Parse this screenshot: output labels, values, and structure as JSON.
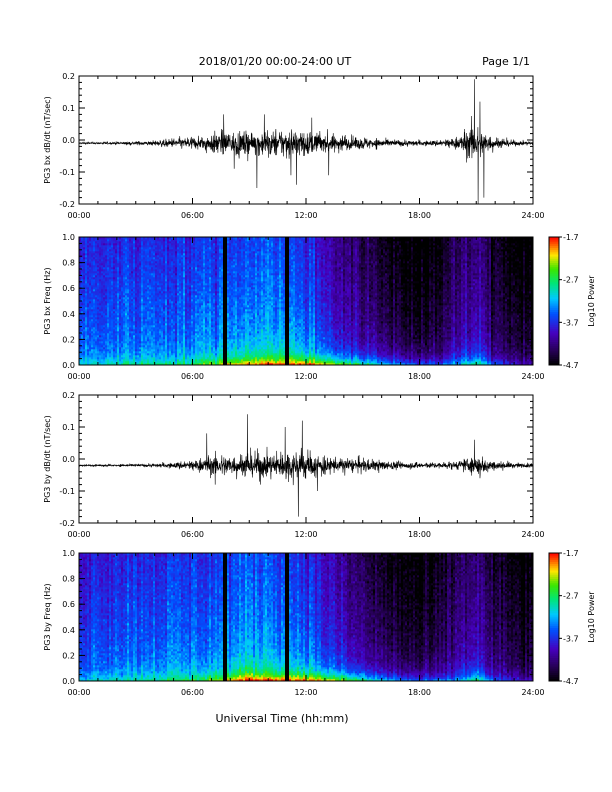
{
  "header": {
    "title": "2018/01/20  00:00-24:00 UT",
    "page": "Page 1/1"
  },
  "footer": {
    "xlabel": "Universal Time (hh:mm)"
  },
  "colors": {
    "trace": "#000000",
    "background": "#ffffff"
  },
  "chart_data": [
    {
      "type": "line",
      "id": "bx-dbdt",
      "title": "",
      "ylabel": "PG3 bx dB/dt (nT/sec)",
      "xlabel": "",
      "xlim": [
        0,
        24
      ],
      "ylim": [
        -0.2,
        0.2
      ],
      "x_ticks": [
        "00:00",
        "06:00",
        "12:00",
        "18:00",
        "24:00"
      ],
      "y_ticks": [
        "-0.2",
        "-0.1",
        "0.0",
        "0.1",
        "0.2"
      ],
      "grid": false,
      "baseline": -0.01,
      "envelope": {
        "hours": [
          0,
          2,
          4,
          5,
          6,
          7,
          8,
          9,
          10,
          11,
          12,
          13,
          14,
          15,
          16,
          17,
          18,
          19,
          20,
          20.8,
          21.2,
          22,
          23,
          24
        ],
        "amplitude": [
          0.004,
          0.006,
          0.012,
          0.022,
          0.03,
          0.045,
          0.06,
          0.055,
          0.06,
          0.07,
          0.06,
          0.045,
          0.035,
          0.03,
          0.02,
          0.014,
          0.012,
          0.014,
          0.03,
          0.09,
          0.07,
          0.03,
          0.012,
          0.008
        ]
      },
      "spikes": [
        {
          "hour": 7.65,
          "value": 0.08
        },
        {
          "hour": 8.2,
          "value": -0.09
        },
        {
          "hour": 9.4,
          "value": -0.15
        },
        {
          "hour": 9.8,
          "value": 0.08
        },
        {
          "hour": 11.2,
          "value": -0.11
        },
        {
          "hour": 11.5,
          "value": -0.14
        },
        {
          "hour": 12.3,
          "value": 0.07
        },
        {
          "hour": 13.2,
          "value": -0.11
        },
        {
          "hour": 20.9,
          "value": 0.19
        },
        {
          "hour": 21.1,
          "value": -0.21
        },
        {
          "hour": 21.4,
          "value": -0.18
        },
        {
          "hour": 21.2,
          "value": 0.12
        }
      ]
    },
    {
      "type": "heatmap",
      "id": "bx-freq",
      "title": "",
      "ylabel": "PG3 bx Freq (Hz)",
      "xlabel": "",
      "xlim": [
        0,
        24
      ],
      "ylim": [
        0,
        1.0
      ],
      "x_ticks": [
        "00:00",
        "06:00",
        "12:00",
        "18:00",
        "24:00"
      ],
      "y_ticks": [
        "0.0",
        "0.2",
        "0.4",
        "0.6",
        "0.8",
        "1.0"
      ],
      "colorbar": {
        "label": "Log10 Power",
        "range": [
          -4.7,
          -1.7
        ],
        "ticks": [
          "-1.7",
          "-2.7",
          "-3.7",
          "-4.7"
        ]
      },
      "gaps_hours": [
        7.75,
        11.0
      ],
      "activity_hours": [
        0,
        3,
        6,
        8,
        10,
        12,
        14,
        16,
        18,
        19,
        20,
        21,
        22,
        24
      ],
      "activity_log_power": [
        -3.5,
        -3.4,
        -3.4,
        -3.3,
        -3.2,
        -3.4,
        -3.9,
        -4.3,
        -4.5,
        -4.4,
        -4.1,
        -3.9,
        -4.3,
        -4.5
      ],
      "low_freq_boost_hours": [
        0,
        6,
        8,
        10,
        12,
        14,
        16,
        18,
        20,
        21,
        22,
        24
      ],
      "low_freq_boost": [
        0.4,
        0.6,
        1.0,
        1.2,
        1.3,
        1.2,
        1.0,
        0.8,
        0.7,
        1.0,
        0.6,
        0.4
      ]
    },
    {
      "type": "line",
      "id": "by-dbdt",
      "title": "",
      "ylabel": "PG3 by dB/dt (nT/sec)",
      "xlabel": "",
      "xlim": [
        0,
        24
      ],
      "ylim": [
        -0.2,
        0.2
      ],
      "x_ticks": [
        "00:00",
        "06:00",
        "12:00",
        "18:00",
        "24:00"
      ],
      "y_ticks": [
        "-0.2",
        "-0.1",
        "0.0",
        "0.1",
        "0.2"
      ],
      "grid": false,
      "baseline": -0.02,
      "envelope": {
        "hours": [
          0,
          2,
          4,
          5,
          6,
          7,
          8,
          9,
          10,
          11,
          11.7,
          12,
          13,
          14,
          15,
          16,
          17,
          18,
          19,
          20,
          21,
          21.5,
          22,
          23,
          24
        ],
        "amplitude": [
          0.004,
          0.005,
          0.008,
          0.014,
          0.025,
          0.045,
          0.05,
          0.06,
          0.055,
          0.065,
          0.085,
          0.06,
          0.045,
          0.035,
          0.03,
          0.025,
          0.018,
          0.014,
          0.014,
          0.02,
          0.05,
          0.035,
          0.02,
          0.012,
          0.01
        ]
      },
      "spikes": [
        {
          "hour": 6.75,
          "value": 0.08
        },
        {
          "hour": 7.2,
          "value": -0.08
        },
        {
          "hour": 8.9,
          "value": 0.14
        },
        {
          "hour": 9.6,
          "value": -0.08
        },
        {
          "hour": 10.9,
          "value": 0.1
        },
        {
          "hour": 11.6,
          "value": -0.18
        },
        {
          "hour": 11.8,
          "value": 0.12
        },
        {
          "hour": 12.6,
          "value": -0.1
        },
        {
          "hour": 20.9,
          "value": 0.06
        },
        {
          "hour": 21.2,
          "value": -0.06
        }
      ]
    },
    {
      "type": "heatmap",
      "id": "by-freq",
      "title": "",
      "ylabel": "PG3 by Freq (Hz)",
      "xlabel": "",
      "xlim": [
        0,
        24
      ],
      "ylim": [
        0,
        1.0
      ],
      "x_ticks": [
        "00:00",
        "06:00",
        "12:00",
        "18:00",
        "24:00"
      ],
      "y_ticks": [
        "0.0",
        "0.2",
        "0.4",
        "0.6",
        "0.8",
        "1.0"
      ],
      "colorbar": {
        "label": "Log10 Power",
        "range": [
          -4.7,
          -1.7
        ],
        "ticks": [
          "-1.7",
          "-2.7",
          "-3.7",
          "-4.7"
        ]
      },
      "gaps_hours": [
        7.75,
        11.0
      ],
      "activity_hours": [
        0,
        3,
        6,
        8,
        10,
        12,
        14,
        16,
        18,
        19,
        20,
        21,
        22,
        24
      ],
      "activity_log_power": [
        -3.5,
        -3.4,
        -3.4,
        -3.3,
        -3.2,
        -3.4,
        -3.9,
        -4.3,
        -4.5,
        -4.4,
        -4.1,
        -3.9,
        -4.3,
        -4.5
      ],
      "low_freq_boost_hours": [
        0,
        6,
        8,
        9,
        10,
        12,
        14,
        16,
        18,
        20,
        21,
        22,
        24
      ],
      "low_freq_boost": [
        0.4,
        0.6,
        1.0,
        1.3,
        1.2,
        1.3,
        1.2,
        1.0,
        0.8,
        0.7,
        1.0,
        0.6,
        0.4
      ]
    }
  ]
}
